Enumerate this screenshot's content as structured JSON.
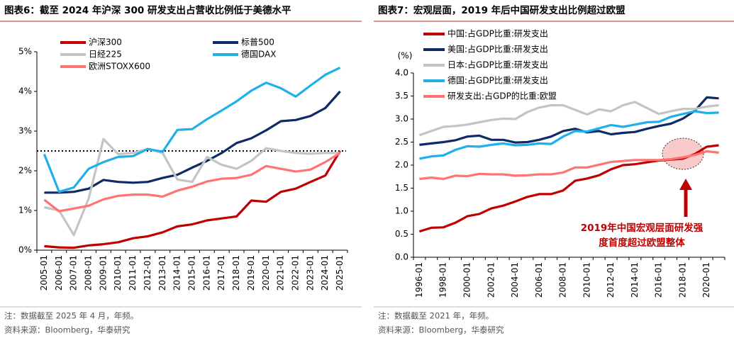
{
  "chart_data": [
    {
      "type": "line",
      "title": "图表6：截至 2024 年沪深 300 研发支出占营收比例低于美德水平",
      "categories": [
        "2005-01",
        "2006-01",
        "2007-01",
        "2008-01",
        "2009-01",
        "2010-01",
        "2011-01",
        "2012-01",
        "2013-01",
        "2014-01",
        "2015-01",
        "2016-01",
        "2017-01",
        "2018-01",
        "2019-01",
        "2020-01",
        "2021-01",
        "2022-01",
        "2023-01",
        "2024-01",
        "2025-01"
      ],
      "series": [
        {
          "name": "沪深300",
          "color": "#c00000",
          "values": [
            0.1,
            0.07,
            0.06,
            0.12,
            0.15,
            0.2,
            0.3,
            0.35,
            0.45,
            0.6,
            0.65,
            0.75,
            0.8,
            0.85,
            1.25,
            1.22,
            1.47,
            1.55,
            1.72,
            1.88,
            2.5
          ]
        },
        {
          "name": "标普500",
          "color": "#0f2a66",
          "values": [
            1.45,
            1.45,
            1.47,
            1.55,
            1.77,
            1.72,
            1.7,
            1.72,
            1.82,
            1.9,
            2.08,
            2.25,
            2.45,
            2.7,
            2.82,
            3.02,
            3.25,
            3.28,
            3.38,
            3.58,
            4.0
          ]
        },
        {
          "name": "日经225",
          "color": "#c4c4c4",
          "values": [
            1.08,
            1.0,
            0.38,
            1.3,
            2.8,
            2.42,
            2.45,
            2.55,
            2.45,
            1.78,
            1.72,
            2.35,
            2.15,
            2.05,
            2.25,
            2.57,
            2.5,
            2.45,
            2.43,
            2.45,
            2.45
          ]
        },
        {
          "name": "德国DAX",
          "color": "#1fb0ea",
          "values": [
            2.42,
            1.47,
            1.58,
            2.05,
            2.22,
            2.35,
            2.37,
            2.55,
            2.48,
            3.03,
            3.05,
            3.3,
            3.52,
            3.75,
            4.02,
            4.22,
            4.08,
            3.87,
            4.15,
            4.42,
            4.6
          ]
        },
        {
          "name": "欧洲STOXX600",
          "color": "#ff7373",
          "values": [
            1.27,
            0.98,
            1.05,
            1.12,
            1.28,
            1.37,
            1.4,
            1.4,
            1.35,
            1.5,
            1.6,
            1.73,
            1.8,
            1.82,
            1.9,
            2.12,
            2.05,
            1.98,
            2.03,
            2.22,
            2.45
          ]
        }
      ],
      "hline": 2.5,
      "ylim": [
        0,
        5
      ],
      "yticks": [
        {
          "value": 0,
          "label": "0%"
        },
        {
          "value": 1,
          "label": "1%"
        },
        {
          "value": 2,
          "label": "2%"
        },
        {
          "value": 3,
          "label": "3%"
        },
        {
          "value": 4,
          "label": "4%"
        },
        {
          "value": 5,
          "label": "5%"
        }
      ],
      "note": "注：数据截至 2025 年 4 月，年频。",
      "source": "资料来源：Bloomberg，华泰研究"
    },
    {
      "type": "line",
      "title": "图表7：宏观层面，2019 年后中国研发支出比例超过欧盟",
      "y_unit": "(%)",
      "categories": [
        "1996-01",
        null,
        "1998-01",
        null,
        "2000-01",
        null,
        "2002-01",
        null,
        "2004-01",
        null,
        "2006-01",
        null,
        "2008-01",
        null,
        "2010-01",
        null,
        "2012-01",
        null,
        "2014-01",
        null,
        "2016-01",
        null,
        "2018-01",
        null,
        "2020-01",
        null
      ],
      "series": [
        {
          "name": "中国:占GDP比重:研发支出",
          "color": "#c00000",
          "values": [
            0.56,
            0.64,
            0.65,
            0.75,
            0.89,
            0.94,
            1.06,
            1.12,
            1.21,
            1.31,
            1.37,
            1.37,
            1.45,
            1.66,
            1.71,
            1.78,
            1.91,
            2.0,
            2.02,
            2.06,
            2.1,
            2.12,
            2.14,
            2.24,
            2.4,
            2.43
          ]
        },
        {
          "name": "美国:占GDP比重:研发支出",
          "color": "#0f2a66",
          "values": [
            2.44,
            2.47,
            2.5,
            2.54,
            2.62,
            2.64,
            2.55,
            2.55,
            2.49,
            2.5,
            2.55,
            2.62,
            2.74,
            2.79,
            2.71,
            2.74,
            2.67,
            2.7,
            2.72,
            2.79,
            2.85,
            2.9,
            3.01,
            3.18,
            3.47,
            3.45
          ]
        },
        {
          "name": "日本:占GDP比重:研发支出",
          "color": "#c4c4c4",
          "values": [
            2.65,
            2.74,
            2.83,
            2.85,
            2.88,
            2.93,
            2.98,
            3.01,
            3.0,
            3.15,
            3.25,
            3.3,
            3.3,
            3.2,
            3.1,
            3.21,
            3.17,
            3.3,
            3.37,
            3.24,
            3.11,
            3.17,
            3.22,
            3.22,
            3.27,
            3.3
          ]
        },
        {
          "name": "德国:占GDP比重:研发支出",
          "color": "#1fb0ea",
          "values": [
            2.14,
            2.19,
            2.21,
            2.33,
            2.41,
            2.4,
            2.44,
            2.47,
            2.43,
            2.44,
            2.47,
            2.46,
            2.62,
            2.74,
            2.73,
            2.8,
            2.87,
            2.83,
            2.88,
            2.93,
            2.94,
            3.05,
            3.11,
            3.17,
            3.13,
            3.14
          ]
        },
        {
          "name": "研发支出:占GDP的比重:欧盟",
          "color": "#ff7373",
          "values": [
            1.7,
            1.73,
            1.7,
            1.77,
            1.76,
            1.81,
            1.8,
            1.8,
            1.77,
            1.78,
            1.8,
            1.8,
            1.84,
            1.95,
            1.95,
            2.01,
            2.07,
            2.09,
            2.11,
            2.11,
            2.11,
            2.13,
            2.17,
            2.22,
            2.3,
            2.27
          ]
        }
      ],
      "annotation": [
        "2019年中国宏观层面研发强",
        "度首度超过欧盟整体"
      ],
      "ylim": [
        0,
        4
      ],
      "yticks": [
        {
          "value": 0,
          "label": "0.0"
        },
        0.5,
        {
          "value": 1,
          "label": "1.0"
        },
        1.5,
        {
          "value": 2,
          "label": "2.0"
        },
        2.5,
        {
          "value": 3,
          "label": "3.0"
        },
        3.5,
        {
          "value": 4,
          "label": "4.0"
        }
      ],
      "note": "注：数据截至 2021 年，年频。",
      "source": "资料来源：Bloomberg，华泰研究"
    }
  ]
}
